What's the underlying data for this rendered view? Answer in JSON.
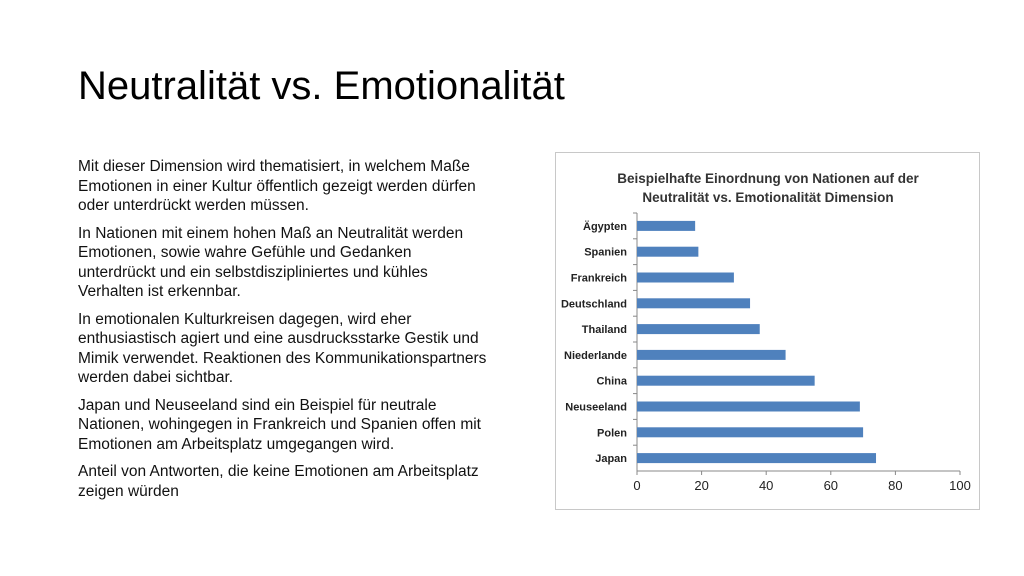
{
  "slide": {
    "title": "Neutralität vs. Emotionalität",
    "paragraphs": [
      "Mit dieser Dimension wird thematisiert, in welchem Maße Emotionen in einer Kultur öffentlich gezeigt werden dürfen oder unterdrückt werden müssen.",
      "In Nationen mit einem hohen Maß an Neutralität werden Emotionen, sowie wahre Gefühle und Gedanken unterdrückt und ein selbstdiszipliniertes und kühles Verhalten ist erkennbar.",
      "In emotionalen Kulturkreisen dagegen, wird eher enthusiastisch agiert und eine ausdrucksstarke Gestik und Mimik verwendet. Reaktionen des Kommunikationspartners werden dabei sichtbar.",
      " Japan und Neuseeland sind ein Beispiel für neutrale Nationen, wohingegen in Frankreich und Spanien offen mit Emotionen am Arbeitsplatz umgegangen wird.",
      "Anteil von Antworten, die keine Emotionen am Arbeitsplatz zeigen würden"
    ]
  },
  "chart_data": {
    "type": "bar",
    "orientation": "horizontal",
    "title_lines": [
      "Beispielhafte Einordnung von Nationen auf der",
      "Neutralität vs. Emotionalität  Dimension"
    ],
    "categories": [
      "Ägypten",
      "Spanien",
      "Frankreich",
      "Deutschland",
      "Thailand",
      "Niederlande",
      "China",
      "Neuseeland",
      "Polen",
      "Japan"
    ],
    "values": [
      18,
      19,
      30,
      35,
      38,
      46,
      55,
      69,
      70,
      74
    ],
    "xlim": [
      0,
      100
    ],
    "xticks": [
      0,
      20,
      40,
      60,
      80,
      100
    ],
    "bar_color": "#4f81bd",
    "legend": "none",
    "grid": false
  }
}
